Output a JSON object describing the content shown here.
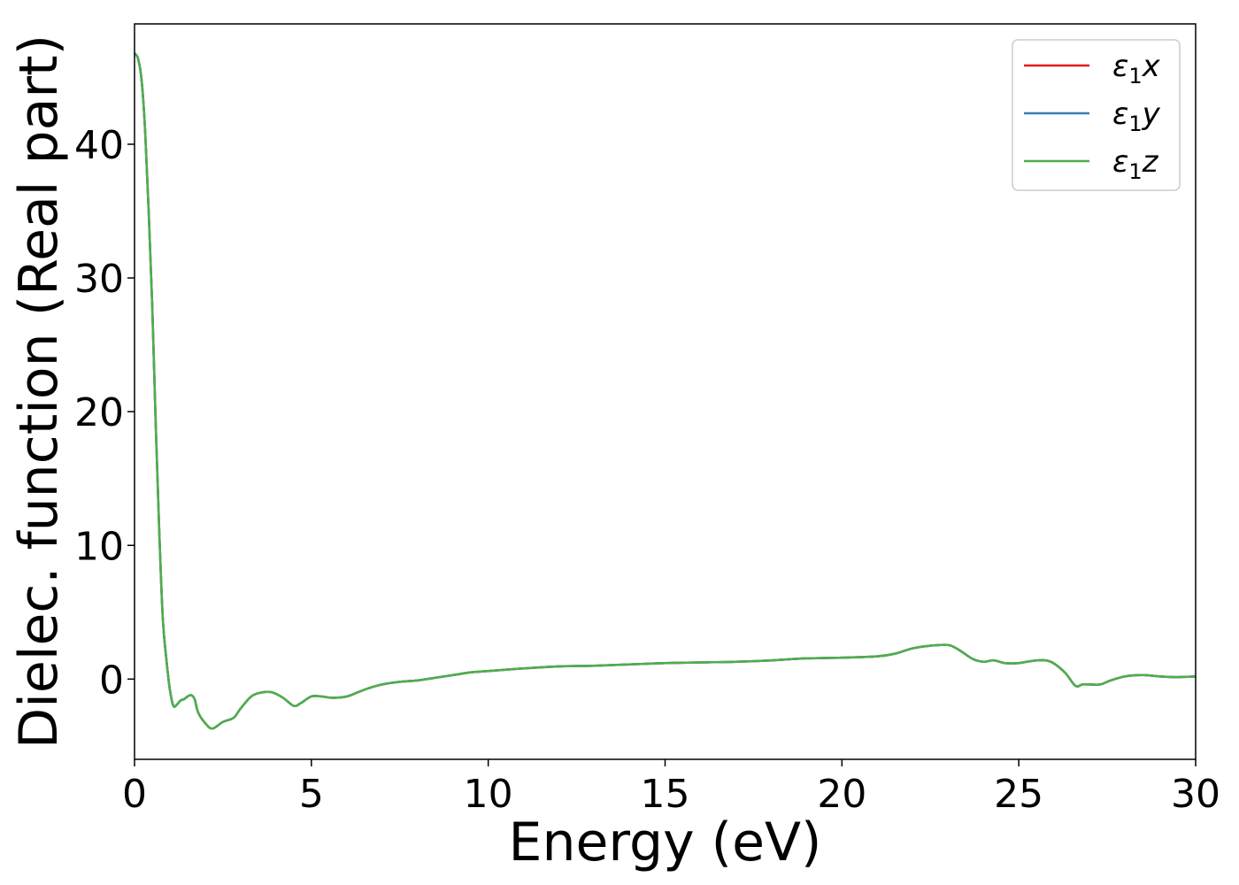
{
  "chart_data": {
    "type": "line",
    "title": "",
    "xlabel": "Energy (eV)",
    "ylabel": "Dielec. function (Real part)",
    "xlim": [
      0,
      30
    ],
    "ylim": [
      -6,
      49
    ],
    "xticks": [
      0,
      5,
      10,
      15,
      20,
      25,
      30
    ],
    "yticks": [
      0,
      10,
      20,
      30,
      40
    ],
    "grid": false,
    "legend": {
      "placement": "top-right",
      "entries": [
        {
          "sym": "ε",
          "sub": "1",
          "var": "x"
        },
        {
          "sym": "ε",
          "sub": "1",
          "var": "y"
        },
        {
          "sym": "ε",
          "sub": "1",
          "var": "z"
        }
      ]
    },
    "x": [
      0,
      0.1,
      0.2,
      0.3,
      0.4,
      0.5,
      0.6,
      0.7,
      0.8,
      0.9,
      1.0,
      1.1,
      1.2,
      1.3,
      1.4,
      1.5,
      1.6,
      1.7,
      1.8,
      2.0,
      2.2,
      2.5,
      2.8,
      3.0,
      3.3,
      3.6,
      3.9,
      4.2,
      4.5,
      4.7,
      5.0,
      5.3,
      5.6,
      6.0,
      6.3,
      6.6,
      7.0,
      7.5,
      8.0,
      8.5,
      9.0,
      9.5,
      10.0,
      11.0,
      12.0,
      13.0,
      14.0,
      15.0,
      16.0,
      17.0,
      18.0,
      19.0,
      20.0,
      21.0,
      21.5,
      22.0,
      22.5,
      23.0,
      23.3,
      23.7,
      24.0,
      24.3,
      24.6,
      25.0,
      25.5,
      25.9,
      26.3,
      26.6,
      26.8,
      27.0,
      27.3,
      27.6,
      28.0,
      28.5,
      29.0,
      29.5,
      30.0
    ],
    "series": [
      {
        "name": "ε1x",
        "color": "#e41a1c",
        "values": [
          46.8,
          46.4,
          44.8,
          41.0,
          35.0,
          28.0,
          19.0,
          11.0,
          4.5,
          1.5,
          -0.8,
          -2.0,
          -1.9,
          -1.6,
          -1.5,
          -1.3,
          -1.2,
          -1.5,
          -2.5,
          -3.3,
          -3.7,
          -3.2,
          -2.9,
          -2.2,
          -1.3,
          -1.0,
          -1.0,
          -1.4,
          -2.0,
          -1.8,
          -1.3,
          -1.3,
          -1.4,
          -1.3,
          -1.0,
          -0.7,
          -0.4,
          -0.2,
          -0.1,
          0.1,
          0.3,
          0.5,
          0.6,
          0.8,
          0.95,
          1.0,
          1.1,
          1.2,
          1.25,
          1.3,
          1.4,
          1.55,
          1.6,
          1.7,
          1.9,
          2.3,
          2.5,
          2.55,
          2.2,
          1.5,
          1.3,
          1.4,
          1.2,
          1.2,
          1.4,
          1.3,
          0.5,
          -0.5,
          -0.4,
          -0.4,
          -0.4,
          -0.1,
          0.2,
          0.3,
          0.2,
          0.15,
          0.2
        ]
      },
      {
        "name": "ε1y",
        "color": "#377eb8",
        "values": [
          46.8,
          46.4,
          44.8,
          41.0,
          35.0,
          28.0,
          19.0,
          11.0,
          4.5,
          1.5,
          -0.8,
          -2.0,
          -1.9,
          -1.6,
          -1.5,
          -1.3,
          -1.2,
          -1.5,
          -2.5,
          -3.3,
          -3.7,
          -3.2,
          -2.9,
          -2.2,
          -1.3,
          -1.0,
          -1.0,
          -1.4,
          -2.0,
          -1.8,
          -1.3,
          -1.3,
          -1.4,
          -1.3,
          -1.0,
          -0.7,
          -0.4,
          -0.2,
          -0.1,
          0.1,
          0.3,
          0.5,
          0.6,
          0.8,
          0.95,
          1.0,
          1.1,
          1.2,
          1.25,
          1.3,
          1.4,
          1.55,
          1.6,
          1.7,
          1.9,
          2.3,
          2.5,
          2.55,
          2.2,
          1.5,
          1.3,
          1.4,
          1.2,
          1.2,
          1.4,
          1.3,
          0.5,
          -0.5,
          -0.4,
          -0.4,
          -0.4,
          -0.1,
          0.2,
          0.3,
          0.2,
          0.15,
          0.2
        ]
      },
      {
        "name": "ε1z",
        "color": "#4daf4a",
        "values": [
          46.8,
          46.4,
          44.8,
          41.0,
          35.0,
          28.0,
          19.0,
          11.0,
          4.5,
          1.5,
          -0.8,
          -2.0,
          -1.9,
          -1.6,
          -1.5,
          -1.3,
          -1.2,
          -1.5,
          -2.5,
          -3.3,
          -3.7,
          -3.2,
          -2.9,
          -2.2,
          -1.3,
          -1.0,
          -1.0,
          -1.4,
          -2.0,
          -1.8,
          -1.3,
          -1.3,
          -1.4,
          -1.3,
          -1.0,
          -0.7,
          -0.4,
          -0.2,
          -0.1,
          0.1,
          0.3,
          0.5,
          0.6,
          0.8,
          0.95,
          1.0,
          1.1,
          1.2,
          1.25,
          1.3,
          1.4,
          1.55,
          1.6,
          1.7,
          1.9,
          2.3,
          2.5,
          2.55,
          2.2,
          1.5,
          1.3,
          1.4,
          1.2,
          1.2,
          1.4,
          1.3,
          0.5,
          -0.5,
          -0.4,
          -0.4,
          -0.4,
          -0.1,
          0.2,
          0.3,
          0.2,
          0.15,
          0.2
        ]
      }
    ]
  }
}
